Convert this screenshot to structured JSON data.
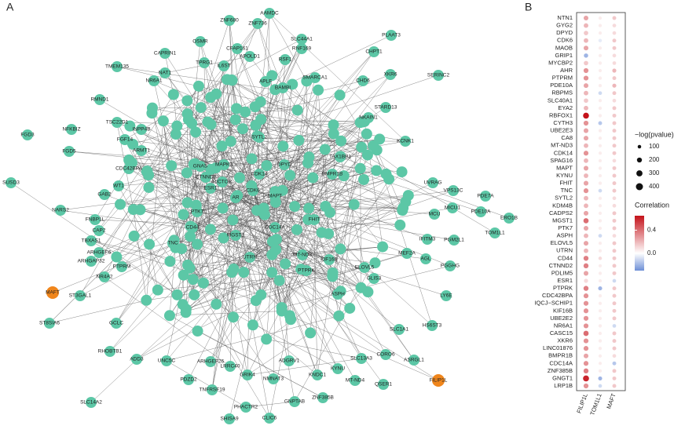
{
  "network": {
    "panel_label": "A",
    "node_color": "#5cc7a6",
    "highlight_color": "#f0861c",
    "nodes": [
      {
        "label": "AAMDC"
      },
      {
        "label": "ZNF680"
      },
      {
        "label": "ZNF736"
      },
      {
        "label": "OSMR"
      },
      {
        "label": "SLC44A1"
      },
      {
        "label": "PLAAT3"
      },
      {
        "label": "CFAP161"
      },
      {
        "label": "RNF169"
      },
      {
        "label": "CHPT1"
      },
      {
        "label": "CAPRIN1"
      },
      {
        "label": "APOLD1"
      },
      {
        "label": "RSF1"
      },
      {
        "label": "TPRG1"
      },
      {
        "label": "IL6ST"
      },
      {
        "label": "TMEM135"
      },
      {
        "label": "NAT1"
      },
      {
        "label": "SERINC2"
      },
      {
        "label": "XKR6"
      },
      {
        "label": "SMARCA1"
      },
      {
        "label": "CHD6"
      },
      {
        "label": "NR6A1"
      },
      {
        "label": "APLF"
      },
      {
        "label": "BAMBI"
      },
      {
        "label": "RMND1"
      },
      {
        "label": "STARD13"
      },
      {
        "label": "NKAIN1"
      },
      {
        "label": "TSC22D1"
      },
      {
        "label": "KCNK1"
      },
      {
        "label": "NFKBIZ"
      },
      {
        "label": "INPP4B"
      },
      {
        "label": "FGF14"
      },
      {
        "label": "FGD3"
      },
      {
        "label": "FGD5"
      },
      {
        "label": "ARMT1"
      },
      {
        "label": "CDC42BPA"
      },
      {
        "label": "SUSD3"
      },
      {
        "label": "WT1"
      },
      {
        "label": "GAB2"
      },
      {
        "label": "NARS2"
      },
      {
        "label": "FNBP1L"
      },
      {
        "label": "CAP2"
      },
      {
        "label": "TBXAS1"
      },
      {
        "label": "ARHGEF6"
      },
      {
        "label": "ARHGAP32"
      },
      {
        "label": "PTPRM"
      },
      {
        "label": "NR4A2"
      },
      {
        "label": "MAFT",
        "highlight": true
      },
      {
        "label": "ST3GAL1"
      },
      {
        "label": "ST8SIA6"
      },
      {
        "label": "GCLC"
      },
      {
        "label": "RHOBTB1"
      },
      {
        "label": "ADD3"
      },
      {
        "label": "UNC5C"
      },
      {
        "label": "SLC14A2"
      },
      {
        "label": "PDZD2"
      },
      {
        "label": "ARHGEF26"
      },
      {
        "label": "LRRC40"
      },
      {
        "label": "TNFRSF19"
      },
      {
        "label": "GRIK4"
      },
      {
        "label": "NMNAT3"
      },
      {
        "label": "PHACTR2"
      },
      {
        "label": "SHISA9"
      },
      {
        "label": "CLIC6"
      },
      {
        "label": "GNPTAB"
      },
      {
        "label": "ADGRV1"
      },
      {
        "label": "KNDC1"
      },
      {
        "label": "ZNF385B"
      },
      {
        "label": "MT-ND4"
      },
      {
        "label": "QSER1"
      },
      {
        "label": "SLC13A3"
      },
      {
        "label": "CORO6"
      },
      {
        "label": "ASRGL1"
      },
      {
        "label": "FILIP1L",
        "highlight": true
      },
      {
        "label": "SLC1A1"
      },
      {
        "label": "HS6ST3"
      },
      {
        "label": "LY6E"
      },
      {
        "label": "PGGHG"
      },
      {
        "label": "AGL"
      },
      {
        "label": "MEF2A"
      },
      {
        "label": "IFITM3"
      },
      {
        "label": "PGM2L1"
      },
      {
        "label": "TOM1L1"
      },
      {
        "label": "ERO1B"
      },
      {
        "label": "PDE10A"
      },
      {
        "label": "MCU"
      },
      {
        "label": "MICU1"
      },
      {
        "label": "PDE7A"
      },
      {
        "label": "VPS13C"
      },
      {
        "label": "UVRAG"
      },
      {
        "label": "ESR1"
      },
      {
        "label": "CDK6"
      },
      {
        "label": "AR"
      },
      {
        "label": "MAPK3"
      },
      {
        "label": "CDK14"
      },
      {
        "label": "GNAS"
      },
      {
        "label": "CTNND2"
      },
      {
        "label": "RICTOR"
      },
      {
        "label": "MAPT"
      },
      {
        "label": "CD44"
      },
      {
        "label": "PTK7"
      },
      {
        "label": "UTRN"
      },
      {
        "label": "BMPR1B"
      },
      {
        "label": "TAX1BP1"
      },
      {
        "label": "KIF16B"
      },
      {
        "label": "ELOVL5"
      },
      {
        "label": "MT-ND3"
      },
      {
        "label": "GLIS3"
      },
      {
        "label": "KYNU"
      },
      {
        "label": "ASPH"
      },
      {
        "label": "PTPRK"
      },
      {
        "label": "SYTL2"
      },
      {
        "label": "DPYD"
      },
      {
        "label": "FHIT"
      },
      {
        "label": "TNC"
      },
      {
        "label": "CDC14A"
      },
      {
        "label": "MGST1"
      }
    ]
  },
  "chart_data": {
    "type": "dot",
    "panel_label": "B",
    "categories": [
      "NTN1",
      "GYG2",
      "DPYD",
      "CDK6",
      "MAOB",
      "GRIP1",
      "MYCBP2",
      "AHR",
      "PTPRM",
      "PDE10A",
      "RBPMS",
      "SLC40A1",
      "EYA2",
      "RBFOX1",
      "CYTH3",
      "UBE2E3",
      "CA8",
      "MT-ND3",
      "CDK14",
      "SPAG16",
      "MAPT",
      "KYNU",
      "FHIT",
      "TNC",
      "SYTL2",
      "KDM4B",
      "CADPS2",
      "MGST1",
      "PTK7",
      "ASPH",
      "ELOVL5",
      "UTRN",
      "CD44",
      "CTNND2",
      "PDLIM5",
      "ESR1",
      "PTPRK",
      "CDC42BPA",
      "IQCJ−SCHIP1",
      "KIF16B",
      "UBE2E2",
      "NR6A1",
      "CASC15",
      "XKR6",
      "LINC01876",
      "BMPR1B",
      "CDC14A",
      "ZNF385B",
      "GNGT1",
      "LRP1B"
    ],
    "series": [
      {
        "name": "FILIP1L",
        "values": [
          0.25,
          0.2,
          0.15,
          0.2,
          0.25,
          -0.2,
          0.15,
          0.3,
          0.3,
          0.25,
          0.2,
          0.15,
          0.2,
          0.65,
          0.3,
          0.25,
          0.25,
          0.2,
          0.3,
          0.2,
          0.25,
          0.2,
          0.25,
          0.3,
          0.2,
          0.2,
          0.25,
          0.4,
          0.25,
          0.2,
          0.25,
          0.2,
          0.35,
          0.35,
          0.25,
          0.1,
          0.35,
          0.3,
          0.3,
          0.3,
          0.3,
          0.3,
          0.4,
          0.3,
          0.3,
          0.25,
          0.3,
          0.35,
          0.6,
          0.3
        ],
        "sizes": [
          180,
          170,
          160,
          170,
          180,
          150,
          160,
          190,
          190,
          180,
          170,
          160,
          170,
          280,
          190,
          180,
          180,
          170,
          190,
          170,
          180,
          170,
          180,
          190,
          170,
          170,
          180,
          220,
          180,
          170,
          180,
          170,
          200,
          200,
          180,
          140,
          200,
          190,
          190,
          190,
          190,
          190,
          220,
          190,
          190,
          180,
          190,
          200,
          290,
          190
        ]
      },
      {
        "name": "TOM1L1",
        "values": [
          0.05,
          0.05,
          0.05,
          -0.05,
          0.05,
          0.05,
          0.05,
          0.05,
          0.05,
          0.05,
          -0.1,
          0.05,
          0.05,
          0.05,
          -0.15,
          0.05,
          0.05,
          0.05,
          0.05,
          0.05,
          0.05,
          0.05,
          0.05,
          -0.1,
          0.05,
          0.05,
          0.05,
          0.05,
          0.05,
          -0.1,
          0.05,
          0.05,
          0.1,
          0.05,
          0.05,
          0.05,
          -0.2,
          0.05,
          0.05,
          0.05,
          0.05,
          0.05,
          0.05,
          0.05,
          0.05,
          0.05,
          0.05,
          0.05,
          -0.2,
          -0.1
        ],
        "sizes": [
          90,
          90,
          90,
          100,
          90,
          90,
          90,
          90,
          90,
          90,
          110,
          90,
          90,
          90,
          120,
          90,
          90,
          90,
          90,
          90,
          90,
          90,
          90,
          110,
          90,
          90,
          90,
          90,
          90,
          110,
          90,
          90,
          100,
          90,
          90,
          90,
          130,
          90,
          90,
          90,
          90,
          90,
          90,
          90,
          90,
          90,
          90,
          90,
          130,
          110
        ]
      },
      {
        "name": "MAFT",
        "values": [
          0.15,
          0.1,
          0.1,
          0.15,
          0.15,
          0.1,
          0.1,
          0.2,
          0.15,
          0.2,
          0.15,
          0.1,
          0.15,
          0.15,
          0.15,
          0.15,
          0.15,
          0.15,
          0.15,
          0.1,
          0.15,
          0.15,
          0.15,
          0.15,
          0.1,
          0.1,
          0.15,
          0.15,
          0.15,
          0.1,
          0.15,
          0.15,
          0.15,
          0.15,
          0.15,
          -0.1,
          0.15,
          0.15,
          0.15,
          0.15,
          0.15,
          -0.1,
          0.15,
          0.15,
          0.15,
          0.1,
          -0.15,
          0.15,
          0.15,
          0.15
        ],
        "sizes": [
          120,
          110,
          110,
          120,
          120,
          110,
          110,
          130,
          120,
          130,
          120,
          110,
          120,
          120,
          120,
          120,
          120,
          120,
          120,
          110,
          120,
          120,
          120,
          120,
          110,
          110,
          120,
          120,
          120,
          110,
          120,
          120,
          120,
          120,
          120,
          110,
          120,
          120,
          120,
          120,
          120,
          110,
          120,
          120,
          120,
          110,
          120,
          120,
          120,
          120
        ]
      }
    ],
    "size_title": "−log(pvalue)",
    "size_ticks": [
      100,
      200,
      300,
      400
    ],
    "color_title": "Correlation",
    "clim": [
      -0.3,
      0.65
    ],
    "cticks": [
      {
        "value": 0,
        "label": "0.0"
      },
      0.4
    ],
    "low_color": "#6d8fd6",
    "mid_color": "#ffffff",
    "high_color": "#c4121a"
  }
}
